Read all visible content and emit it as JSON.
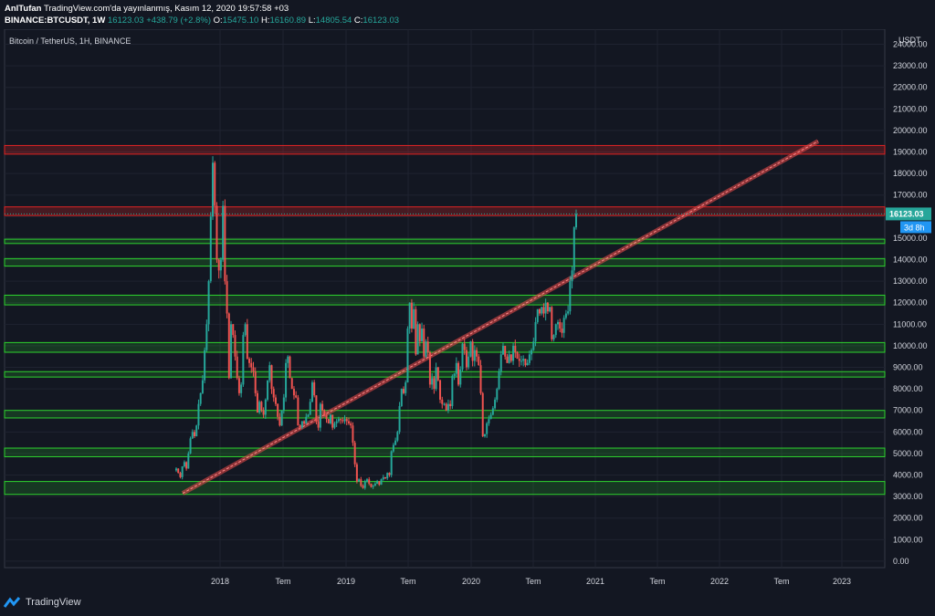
{
  "header": {
    "author": "AnlTufan",
    "published_text": "TradingView.com'da yayınlanmış, Kasım 12, 2020 19:57:58 +03",
    "symbol": "BINANCE:BTCUSDT, 1W",
    "last": "16123.03",
    "change": "+438.79 (+2.8%)",
    "o_label": "O:",
    "o": "15475.10",
    "h_label": "H:",
    "h": "16160.89",
    "l_label": "L:",
    "l": "14805.54",
    "c_label": "C:",
    "c": "16123.03"
  },
  "chart_data": {
    "type": "candlestick",
    "title": "Bitcoin / TetherUS, 1H, BINANCE",
    "currency": "USDT",
    "ylim": [
      -300,
      24700
    ],
    "y_ticks": [
      0,
      1000,
      2000,
      3000,
      4000,
      5000,
      6000,
      7000,
      8000,
      9000,
      10000,
      11000,
      12000,
      13000,
      14000,
      15000,
      16000,
      17000,
      18000,
      19000,
      20000,
      21000,
      22000,
      23000,
      24000
    ],
    "x_ticks": [
      "2018",
      "Tem",
      "2019",
      "Tem",
      "2020",
      "Tem",
      "2021",
      "Tem",
      "2022",
      "Tem",
      "2023"
    ],
    "last_price_label": "16123.03",
    "countdown_label": "3d 8h",
    "candles_close": [
      4300,
      4100,
      3900,
      4400,
      4600,
      4300,
      5000,
      5700,
      6000,
      5800,
      6300,
      7300,
      7800,
      8400,
      9800,
      11000,
      13000,
      16000,
      18500,
      16500,
      14000,
      13500,
      14000,
      16500,
      13000,
      11500,
      8500,
      11000,
      10500,
      9500,
      8500,
      7800,
      8200,
      10500,
      11000,
      9400,
      9200,
      9000,
      8800,
      7800,
      6900,
      7400,
      7000,
      6800,
      7500,
      8400,
      9100,
      8000,
      7600,
      7300,
      6700,
      6300,
      7000,
      7600,
      9200,
      9500,
      8500,
      8000,
      7700,
      7600,
      6300,
      6200,
      6500,
      6400,
      6700,
      6800,
      7400,
      8300,
      7700,
      6500,
      6200,
      7300,
      7000,
      6800,
      6600,
      6400,
      6800,
      6200,
      6400,
      6500,
      6600,
      6550,
      6500,
      6600,
      6500,
      6400,
      6300,
      5500,
      4500,
      3700,
      3800,
      3500,
      3400,
      3700,
      3800,
      3600,
      3450,
      3500,
      3600,
      3700,
      3550,
      3800,
      3900,
      3850,
      4100,
      4000,
      5100,
      5400,
      5600,
      6000,
      7200,
      8000,
      7800,
      8300,
      10800,
      12000,
      10800,
      11700,
      9600,
      11000,
      10200,
      10800,
      9500,
      10200,
      9700,
      8200,
      8500,
      8000,
      9000,
      8400,
      7500,
      7300,
      7300,
      7000,
      7300,
      7200,
      8600,
      8700,
      9200,
      8200,
      8900,
      10100,
      9800,
      9000,
      9500,
      10200,
      9300,
      9800,
      9500,
      9100,
      7800,
      5800,
      5900,
      6400,
      6600,
      6800,
      7100,
      7500,
      8000,
      8800,
      9600,
      10000,
      9500,
      9200,
      9600,
      9300,
      10000,
      9700,
      9400,
      9300,
      9300,
      9400,
      9100,
      9200,
      9600,
      9800,
      10200,
      11100,
      11700,
      11500,
      11800,
      11500,
      12000,
      11600,
      11800,
      10300,
      10500,
      11000,
      11100,
      10800,
      10600,
      11300,
      11500,
      11600,
      13000,
      13500,
      15500,
      16123
    ],
    "zones": [
      {
        "color": "red",
        "low": 18900,
        "high": 19300
      },
      {
        "color": "red",
        "low": 16050,
        "high": 16450
      },
      {
        "color": "green",
        "low": 14750,
        "high": 14950
      },
      {
        "color": "green",
        "low": 13700,
        "high": 14050
      },
      {
        "color": "green",
        "low": 11900,
        "high": 12350
      },
      {
        "color": "green",
        "low": 9700,
        "high": 10150
      },
      {
        "color": "green",
        "low": 8550,
        "high": 8800
      },
      {
        "color": "green",
        "low": 6650,
        "high": 7000
      },
      {
        "color": "green",
        "low": 4850,
        "high": 5250
      },
      {
        "color": "green",
        "low": 3100,
        "high": 3700
      }
    ],
    "trendline": {
      "from": [
        "2017-09",
        3150
      ],
      "to": [
        "2022-12",
        19500
      ]
    }
  },
  "footer": {
    "brand": "TradingView"
  },
  "colors": {
    "bg": "#131722",
    "up": "#26a69a",
    "down": "#ef5350",
    "zone_green": "#2ed42e",
    "zone_red": "#e02424",
    "price_label": "#26a69a",
    "countdown": "#2196f3"
  }
}
